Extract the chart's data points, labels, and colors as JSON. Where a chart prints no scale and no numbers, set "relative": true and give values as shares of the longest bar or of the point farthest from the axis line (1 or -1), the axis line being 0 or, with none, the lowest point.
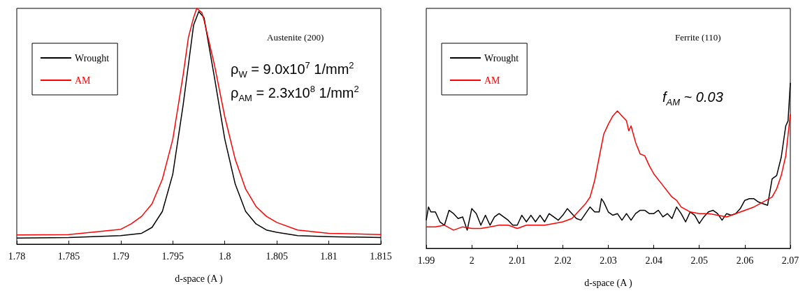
{
  "chart_data": [
    {
      "type": "line",
      "xlabel": "d-space (A )",
      "relative": true,
      "xlim": [
        1.78,
        1.815
      ],
      "xticks": [
        1.78,
        1.785,
        1.79,
        1.795,
        1.8,
        1.805,
        1.81,
        1.815
      ],
      "legend": "top left",
      "grid": false,
      "marker": "none",
      "annotations": [
        "Austenite (200)",
        "ρ$_{W}$ = 9.0x10$^{7}$ 1/mm$^{2}$",
        "ρ$_{AM}$ = 2.3x10$^{8}$ 1/mm$^{2}$"
      ],
      "series": [
        {
          "name": "Wrought",
          "color": "#000000",
          "x": [
            1.78,
            1.785,
            1.79,
            1.792,
            1.793,
            1.794,
            1.795,
            1.796,
            1.797,
            1.7975,
            1.798,
            1.799,
            1.8,
            1.801,
            1.802,
            1.803,
            1.804,
            1.805,
            1.807,
            1.81,
            1.815
          ],
          "values": [
            0.026,
            0.028,
            0.036,
            0.046,
            0.071,
            0.139,
            0.297,
            0.592,
            0.929,
            0.987,
            0.961,
            0.708,
            0.445,
            0.255,
            0.139,
            0.086,
            0.06,
            0.05,
            0.036,
            0.032,
            0.028
          ]
        },
        {
          "name": "AM",
          "color": "#ff0000",
          "x": [
            1.78,
            1.785,
            1.79,
            1.791,
            1.792,
            1.793,
            1.794,
            1.795,
            1.796,
            1.7965,
            1.797,
            1.7973,
            1.7978,
            1.798,
            1.799,
            1.8,
            1.801,
            1.802,
            1.803,
            1.804,
            1.805,
            1.807,
            1.81,
            1.815
          ],
          "values": [
            0.039,
            0.041,
            0.063,
            0.086,
            0.118,
            0.171,
            0.276,
            0.445,
            0.719,
            0.877,
            0.961,
            1,
            0.982,
            0.95,
            0.761,
            0.54,
            0.36,
            0.234,
            0.16,
            0.118,
            0.092,
            0.06,
            0.046,
            0.041
          ]
        }
      ]
    },
    {
      "type": "line",
      "xlabel": "d-space (A )",
      "relative": true,
      "xlim": [
        1.99,
        2.07
      ],
      "xticks": [
        1.99,
        2,
        2.01,
        2.02,
        2.03,
        2.04,
        2.05,
        2.06,
        2.07
      ],
      "legend": "top left",
      "grid": false,
      "marker": "none",
      "annotations": [
        "Ferrite (110)",
        "f$_{AM}$ ~ 0.03"
      ],
      "series": [
        {
          "name": "Wrought",
          "color": "#000000",
          "x": [
            1.99,
            1.9905,
            1.991,
            1.992,
            1.993,
            1.994,
            1.995,
            1.996,
            1.997,
            1.998,
            1.999,
            2,
            2.001,
            2.002,
            2.003,
            2.004,
            2.005,
            2.006,
            2.007,
            2.008,
            2.009,
            2.01,
            2.011,
            2.012,
            2.013,
            2.014,
            2.015,
            2.016,
            2.017,
            2.018,
            2.019,
            2.02,
            2.021,
            2.022,
            2.023,
            2.024,
            2.025,
            2.026,
            2.027,
            2.028,
            2.0285,
            2.029,
            2.03,
            2.031,
            2.032,
            2.033,
            2.034,
            2.035,
            2.036,
            2.037,
            2.038,
            2.039,
            2.04,
            2.041,
            2.042,
            2.043,
            2.044,
            2.045,
            2.046,
            2.047,
            2.048,
            2.049,
            2.05,
            2.051,
            2.052,
            2.053,
            2.054,
            2.055,
            2.056,
            2.057,
            2.058,
            2.059,
            2.06,
            2.061,
            2.062,
            2.063,
            2.064,
            2.065,
            2.066,
            2.067,
            2.068,
            2.069,
            2.0695,
            2.07
          ],
          "values": [
            0.17,
            0.25,
            0.22,
            0.22,
            0.16,
            0.14,
            0.23,
            0.21,
            0.18,
            0.19,
            0.11,
            0.24,
            0.21,
            0.14,
            0.2,
            0.14,
            0.19,
            0.21,
            0.19,
            0.17,
            0.14,
            0.14,
            0.2,
            0.16,
            0.2,
            0.16,
            0.2,
            0.16,
            0.21,
            0.19,
            0.17,
            0.2,
            0.24,
            0.21,
            0.18,
            0.17,
            0.21,
            0.25,
            0.22,
            0.22,
            0.3,
            0.28,
            0.22,
            0.2,
            0.21,
            0.17,
            0.21,
            0.17,
            0.21,
            0.23,
            0.23,
            0.21,
            0.21,
            0.23,
            0.19,
            0.21,
            0.18,
            0.25,
            0.21,
            0.16,
            0.22,
            0.2,
            0.15,
            0.19,
            0.22,
            0.23,
            0.21,
            0.17,
            0.21,
            0.2,
            0.21,
            0.24,
            0.29,
            0.3,
            0.3,
            0.28,
            0.27,
            0.26,
            0.42,
            0.44,
            0.55,
            0.74,
            0.77,
            1
          ]
        },
        {
          "name": "AM",
          "color": "#ff0000",
          "x": [
            1.99,
            1.992,
            1.994,
            1.996,
            1.998,
            2,
            2.002,
            2.004,
            2.006,
            2.008,
            2.01,
            2.012,
            2.014,
            2.016,
            2.018,
            2.02,
            2.022,
            2.023,
            2.024,
            2.025,
            2.026,
            2.027,
            2.028,
            2.029,
            2.03,
            2.031,
            2.032,
            2.033,
            2.034,
            2.0345,
            2.035,
            2.036,
            2.037,
            2.038,
            2.039,
            2.04,
            2.042,
            2.044,
            2.045,
            2.046,
            2.048,
            2.05,
            2.052,
            2.054,
            2.056,
            2.058,
            2.06,
            2.062,
            2.064,
            2.066,
            2.067,
            2.068,
            2.069,
            2.07
          ],
          "values": [
            0.13,
            0.13,
            0.14,
            0.11,
            0.13,
            0.12,
            0.12,
            0.13,
            0.14,
            0.14,
            0.12,
            0.14,
            0.14,
            0.14,
            0.15,
            0.16,
            0.18,
            0.21,
            0.24,
            0.27,
            0.31,
            0.41,
            0.55,
            0.69,
            0.75,
            0.8,
            0.83,
            0.8,
            0.77,
            0.71,
            0.74,
            0.64,
            0.57,
            0.56,
            0.5,
            0.45,
            0.38,
            0.31,
            0.29,
            0.25,
            0.22,
            0.21,
            0.21,
            0.2,
            0.19,
            0.21,
            0.23,
            0.25,
            0.28,
            0.31,
            0.36,
            0.44,
            0.56,
            0.81
          ]
        }
      ]
    }
  ]
}
